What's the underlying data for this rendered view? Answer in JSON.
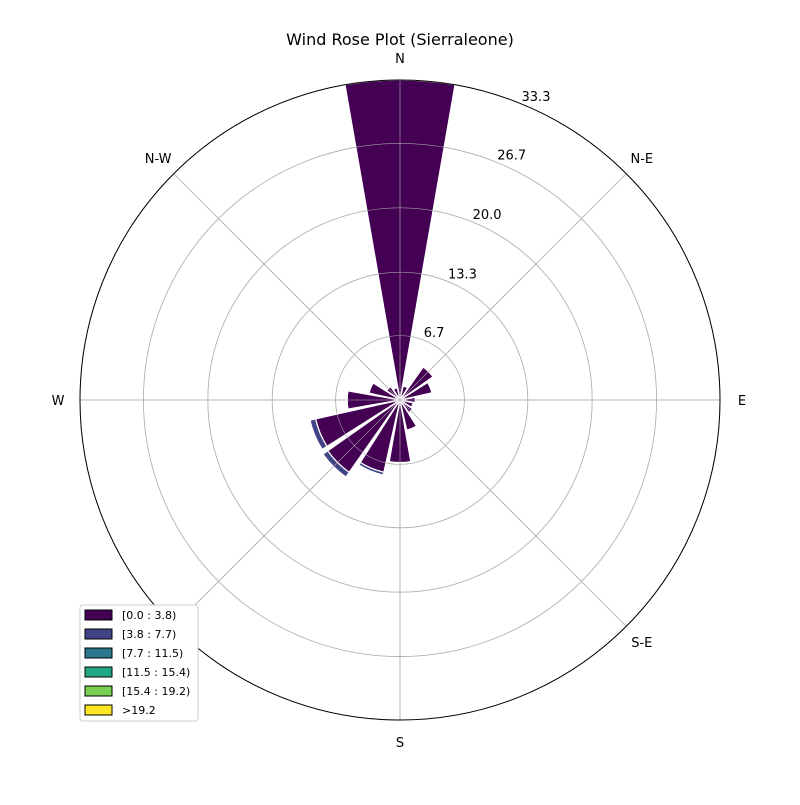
{
  "chart_data": {
    "type": "windrose",
    "title": "Wind Rose Plot (Sierraleone)",
    "directions": [
      "N",
      "N-E",
      "E",
      "S-E",
      "S",
      "S-W",
      "W",
      "N-W"
    ],
    "radial_ticks": [
      "6.7",
      "13.3",
      "20.0",
      "26.7",
      "33.3"
    ],
    "radial_tick_values": [
      6.7,
      13.3,
      20.0,
      26.7,
      33.3
    ],
    "rmax": 33.3,
    "sector_count": 16,
    "speed_bins": [
      {
        "label": "[0.0 : 3.8)",
        "color": "#440154"
      },
      {
        "label": "[3.8 : 7.7)",
        "color": "#414487"
      },
      {
        "label": "[7.7 : 11.5)",
        "color": "#2a788e"
      },
      {
        "label": "[11.5 : 15.4)",
        "color": "#22a884"
      },
      {
        "label": "[15.4 : 19.2)",
        "color": "#7ad151"
      },
      {
        "label": ">19.2",
        "color": "#fde725"
      }
    ],
    "sectors": [
      {
        "direction_deg": 0,
        "values": [
          33.3,
          0,
          0,
          0,
          0,
          0
        ]
      },
      {
        "direction_deg": 22.5,
        "values": [
          1.5,
          0,
          0,
          0,
          0,
          0
        ]
      },
      {
        "direction_deg": 45,
        "values": [
          4.2,
          0.1,
          0,
          0,
          0,
          0
        ]
      },
      {
        "direction_deg": 67.5,
        "values": [
          3.4,
          0,
          0,
          0,
          0,
          0
        ]
      },
      {
        "direction_deg": 90,
        "values": [
          1.6,
          0,
          0,
          0,
          0,
          0
        ]
      },
      {
        "direction_deg": 112.5,
        "values": [
          1.4,
          0,
          0,
          0,
          0,
          0
        ]
      },
      {
        "direction_deg": 135,
        "values": [
          1.6,
          0,
          0,
          0,
          0,
          0
        ]
      },
      {
        "direction_deg": 157.5,
        "values": [
          3.2,
          0,
          0,
          0,
          0,
          0
        ]
      },
      {
        "direction_deg": 180,
        "values": [
          6.5,
          0,
          0,
          0,
          0,
          0
        ]
      },
      {
        "direction_deg": 202.5,
        "values": [
          7.7,
          0.3,
          0,
          0,
          0,
          0
        ]
      },
      {
        "direction_deg": 225,
        "values": [
          9.2,
          0.6,
          0,
          0,
          0,
          0
        ]
      },
      {
        "direction_deg": 247.5,
        "values": [
          9.0,
          0.6,
          0,
          0,
          0,
          0
        ]
      },
      {
        "direction_deg": 270,
        "values": [
          5.5,
          0.1,
          0,
          0,
          0,
          0
        ]
      },
      {
        "direction_deg": 292.5,
        "values": [
          3.3,
          0,
          0,
          0,
          0,
          0
        ]
      },
      {
        "direction_deg": 315,
        "values": [
          1.7,
          0,
          0,
          0,
          0,
          0
        ]
      },
      {
        "direction_deg": 337.5,
        "values": [
          1.3,
          0,
          0,
          0,
          0,
          0
        ]
      }
    ],
    "grid": true,
    "legend_position": "lower-left"
  }
}
